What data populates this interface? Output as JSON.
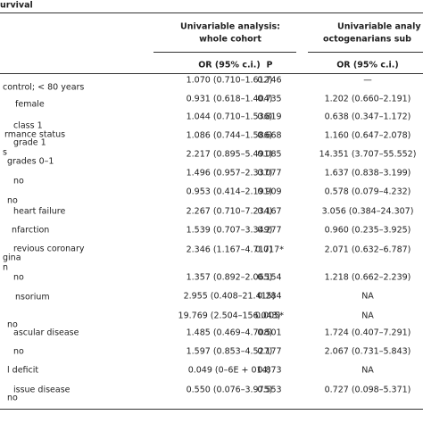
{
  "header": {
    "title": "urvival"
  },
  "columns": {
    "group1": [
      "Univariable analysis:",
      "whole cohort"
    ],
    "group2": [
      "Univariable analy",
      "octogenarians sub"
    ],
    "sub": [
      "OR (95% c.i.)",
      "P",
      "OR (95% c.i.)"
    ]
  },
  "labels": [
    "control; < 80 years",
    "female",
    "class 1",
    "rmance status",
    "grade 1",
    "s",
    "grades 0–1",
    "no",
    "no",
    "heart failure",
    "nfarction",
    "revious coronary",
    "gina",
    "n",
    "no",
    "nsorium",
    "no",
    "ascular disease",
    "no",
    "l deficit",
    "issue disease",
    "no"
  ],
  "rows": [
    [
      "1.070 (0.710–1.612)",
      "0.746",
      "—"
    ],
    [
      "0.931 (0.618–1.404)",
      "0.735",
      "1.202 (0.660–2.191)"
    ],
    [
      "1.044 (0.710–1.536)",
      "0.819",
      "0.638 (0.347–1.172)"
    ],
    [
      "1.086 (0.744–1.586)",
      "0.668",
      "1.160 (0.647–2.078)"
    ],
    [
      "2.217 (0.895–5.491)",
      "0.085",
      "14.351 (3.707–55.552)"
    ],
    [
      "1.496 (0.957–2.337)",
      "0.077",
      "1.637 (0.838–3.199)"
    ],
    [
      "0.953 (0.414–2.191)",
      "0.909",
      "0.578 (0.079–4.232)"
    ],
    [
      "2.267 (0.710–7.234)",
      "0.167",
      "3.056 (0.384–24.307)"
    ],
    [
      "1.539 (0.707–3.349)",
      "0.277",
      "0.960 (0.235–3.925)"
    ],
    [
      "2.346 (1.167–4.717)",
      "0.017*",
      "2.071 (0.632–6.787)"
    ],
    [
      "1.357 (0.892–2.065)",
      "0.154",
      "1.218 (0.662–2.239)"
    ],
    [
      "2.955 (0.408–21.415)",
      "0.284",
      "NA"
    ],
    [
      "19.769 (2.504–156.043)",
      "0.005*",
      "NA"
    ],
    [
      "1.485 (0.469–4.708)",
      "0.501",
      "1.724 (0.407–7.291)"
    ],
    [
      "1.597 (0.853–4.527)",
      "0.177",
      "2.067 (0.731–5.843)"
    ],
    [
      "0.049 (0–6E + 014)",
      "0.873",
      "NA"
    ],
    [
      "0.550 (0.076–3.975)",
      "0.553",
      "0.727 (0.098–5.371)"
    ]
  ]
}
